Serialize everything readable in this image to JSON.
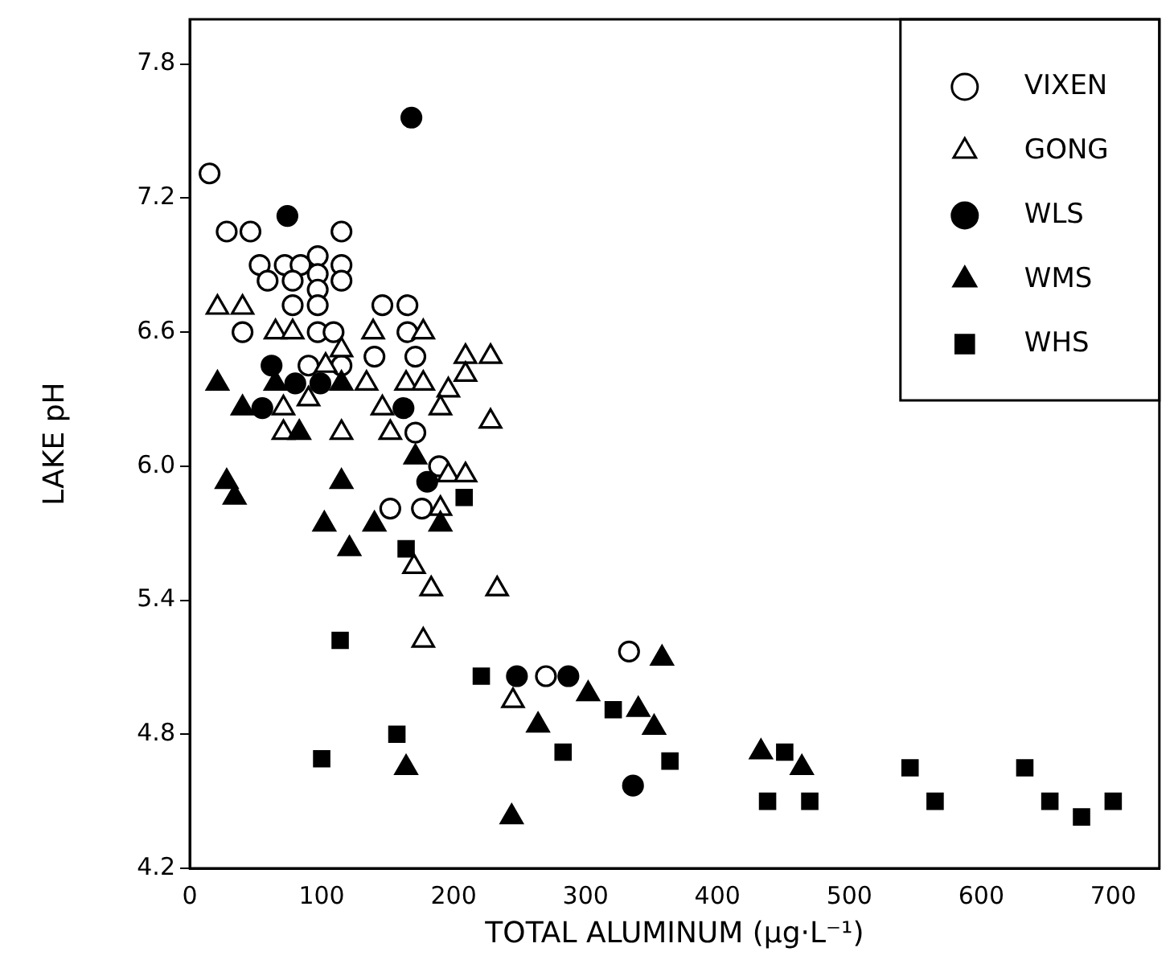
{
  "chart_data": {
    "type": "scatter",
    "xlabel": "TOTAL ALUMINUM (μg·L⁻¹)",
    "ylabel": "LAKE pH",
    "xlim": [
      0,
      735
    ],
    "xticks": [
      0,
      100,
      200,
      300,
      400,
      500,
      600,
      700
    ],
    "ylim": [
      4.2,
      8.0
    ],
    "yticks": [
      4.2,
      4.8,
      5.4,
      {
        "value": 6,
        "label": "6.0"
      },
      6.6,
      7.2,
      7.8
    ],
    "grid": false,
    "legend": "top right",
    "series": [
      {
        "name": "VIXEN",
        "color": "#ffffff",
        "marker": "circle",
        "x": [
          15,
          28,
          46,
          115,
          53,
          72,
          84,
          97,
          115,
          59,
          78,
          97,
          115,
          97,
          78,
          97,
          146,
          165,
          40,
          97,
          109,
          165,
          90,
          115,
          140,
          171,
          171,
          189,
          152,
          176,
          333,
          270
        ],
        "values": [
          7.31,
          7.05,
          7.05,
          7.05,
          6.9,
          6.9,
          6.9,
          6.94,
          6.9,
          6.83,
          6.83,
          6.86,
          6.83,
          6.79,
          6.72,
          6.72,
          6.72,
          6.72,
          6.6,
          6.6,
          6.6,
          6.6,
          6.45,
          6.45,
          6.49,
          6.49,
          6.15,
          6.0,
          5.81,
          5.81,
          5.17,
          5.06
        ]
      },
      {
        "name": "GONG",
        "color": "#ffffff",
        "marker": "triangle",
        "x": [
          21,
          40,
          65,
          78,
          115,
          103,
          134,
          90,
          71,
          71,
          115,
          139,
          177,
          164,
          177,
          209,
          228,
          209,
          196,
          146,
          190,
          152,
          228,
          196,
          209,
          190,
          170,
          183,
          233,
          177,
          245
        ],
        "values": [
          6.71,
          6.71,
          6.6,
          6.6,
          6.52,
          6.45,
          6.37,
          6.3,
          6.26,
          6.15,
          6.15,
          6.6,
          6.6,
          6.37,
          6.37,
          6.49,
          6.49,
          6.41,
          6.34,
          6.26,
          6.26,
          6.15,
          6.2,
          5.96,
          5.96,
          5.81,
          5.55,
          5.45,
          5.45,
          5.22,
          4.95
        ]
      },
      {
        "name": "WLS",
        "color": "#000000",
        "marker": "circle",
        "x": [
          168,
          74,
          62,
          80,
          99,
          55,
          162,
          180,
          248,
          287,
          336
        ],
        "values": [
          7.56,
          7.12,
          6.45,
          6.37,
          6.37,
          6.26,
          6.26,
          5.93,
          5.06,
          5.06,
          4.57
        ]
      },
      {
        "name": "WMS",
        "color": "#000000",
        "marker": "triangle",
        "x": [
          21,
          65,
          115,
          40,
          83,
          28,
          34,
          115,
          171,
          102,
          140,
          190,
          121,
          164,
          244,
          264,
          302,
          340,
          352,
          358,
          433,
          464
        ],
        "values": [
          6.37,
          6.37,
          6.37,
          6.26,
          6.15,
          5.93,
          5.86,
          5.93,
          6.04,
          5.74,
          5.74,
          5.74,
          5.63,
          4.65,
          4.43,
          4.84,
          4.98,
          4.91,
          4.83,
          5.14,
          4.72,
          4.65
        ]
      },
      {
        "name": "WHS",
        "color": "#000000",
        "marker": "square",
        "x": [
          208,
          164,
          114,
          100,
          157,
          221,
          283,
          321,
          364,
          451,
          438,
          470,
          546,
          565,
          633,
          652,
          676,
          700
        ],
        "values": [
          5.86,
          5.63,
          5.22,
          4.69,
          4.8,
          5.06,
          4.72,
          4.91,
          4.68,
          4.72,
          4.5,
          4.5,
          4.65,
          4.5,
          4.65,
          4.5,
          4.43,
          4.5
        ]
      }
    ]
  }
}
